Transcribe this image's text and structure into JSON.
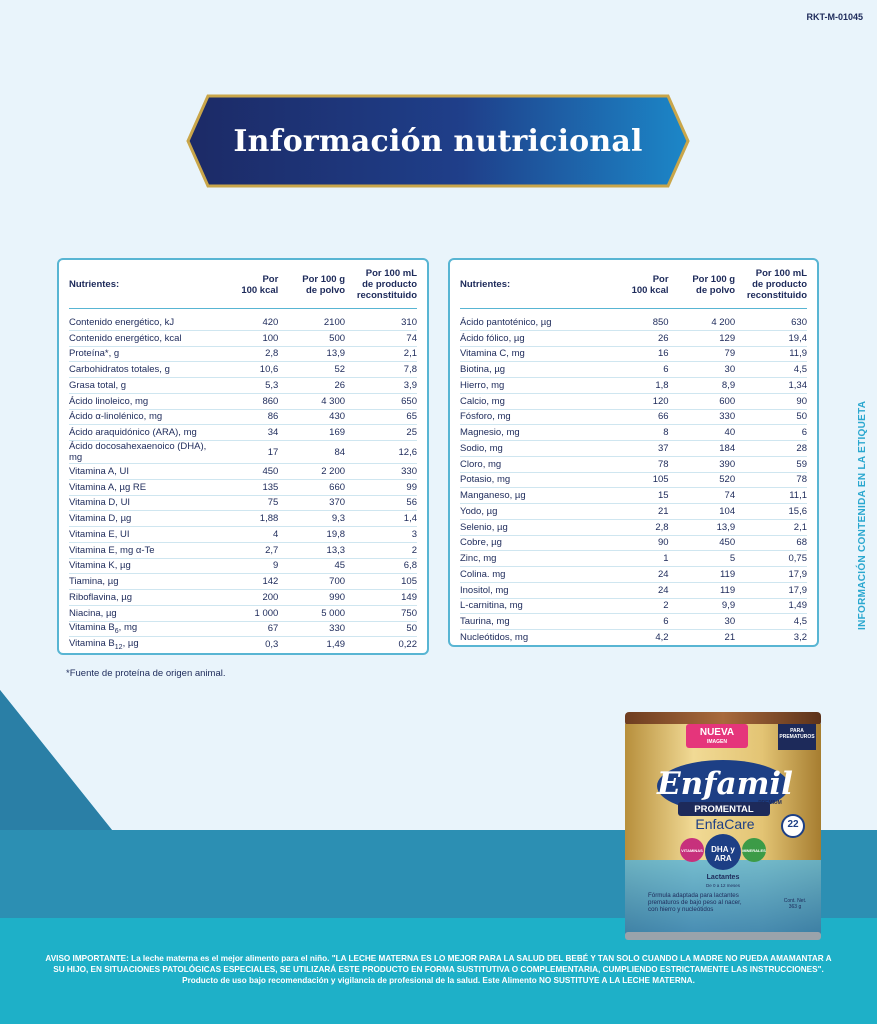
{
  "document_code": "RKT-M-01045",
  "title": "Información nutricional",
  "side_label": "INFORMACIÓN CONTENIDA EN LA ETIQUETA",
  "left_table": {
    "headers": [
      "Nutrientes:",
      "Por 100 kcal",
      "Por 100 g de polvo",
      "Por 100 mL de producto reconstituido"
    ],
    "rows": [
      [
        "Contenido energético, kJ",
        "420",
        "2100",
        "310"
      ],
      [
        "Contenido energético, kcal",
        "100",
        "500",
        "74"
      ],
      [
        "Proteína*, g",
        "2,8",
        "13,9",
        "2,1"
      ],
      [
        "Carbohidratos totales, g",
        "10,6",
        "52",
        "7,8"
      ],
      [
        "Grasa total, g",
        "5,3",
        "26",
        "3,9"
      ],
      [
        "Ácido linoleico, mg",
        "860",
        "4 300",
        "650"
      ],
      [
        "Ácido α-linolénico, mg",
        "86",
        "430",
        "65"
      ],
      [
        "Ácido araquidónico (ARA), mg",
        "34",
        "169",
        "25"
      ],
      [
        "Ácido docosahexaenoico (DHA), mg",
        "17",
        "84",
        "12,6"
      ],
      [
        "Vitamina A, UI",
        "450",
        "2 200",
        "330"
      ],
      [
        "Vitamina A, µg RE",
        "135",
        "660",
        "99"
      ],
      [
        "Vitamina D, UI",
        "75",
        "370",
        "56"
      ],
      [
        "Vitamina D, µg",
        "1,88",
        "9,3",
        "1,4"
      ],
      [
        "Vitamina E, UI",
        "4",
        "19,8",
        "3"
      ],
      [
        "Vitamina E, mg α-Te",
        "2,7",
        "13,3",
        "2"
      ],
      [
        "Vitamina K, µg",
        "9",
        "45",
        "6,8"
      ],
      [
        "Tiamina, µg",
        "142",
        "700",
        "105"
      ],
      [
        "Riboflavina, µg",
        "200",
        "990",
        "149"
      ],
      [
        "Niacina, µg",
        "1 000",
        "5 000",
        "750"
      ],
      [
        "Vitamina B6, mg",
        "67",
        "330",
        "50"
      ],
      [
        "Vitamina B12, µg",
        "0,3",
        "1,49",
        "0,22"
      ]
    ]
  },
  "right_table": {
    "headers": [
      "Nutrientes:",
      "Por 100 kcal",
      "Por 100 g de polvo",
      "Por 100 mL de producto reconstituido"
    ],
    "rows": [
      [
        "Ácido pantoténico, µg",
        "850",
        "4 200",
        "630"
      ],
      [
        "Ácido fólico, µg",
        "26",
        "129",
        "19,4"
      ],
      [
        "Vitamina C, mg",
        "16",
        "79",
        "11,9"
      ],
      [
        "Biotina, µg",
        "6",
        "30",
        "4,5"
      ],
      [
        "Hierro, mg",
        "1,8",
        "8,9",
        "1,34"
      ],
      [
        "Calcio, mg",
        "120",
        "600",
        "90"
      ],
      [
        "Fósforo, mg",
        "66",
        "330",
        "50"
      ],
      [
        "Magnesio, mg",
        "8",
        "40",
        "6"
      ],
      [
        "Sodio, mg",
        "37",
        "184",
        "28"
      ],
      [
        "Cloro, mg",
        "78",
        "390",
        "59"
      ],
      [
        "Potasio, mg",
        "105",
        "520",
        "78"
      ],
      [
        "Manganeso, µg",
        "15",
        "74",
        "11,1"
      ],
      [
        "Yodo, µg",
        "21",
        "104",
        "15,6"
      ],
      [
        "Selenio, µg",
        "2,8",
        "13,9",
        "2,1"
      ],
      [
        "Cobre, µg",
        "90",
        "450",
        "68"
      ],
      [
        "Zinc, mg",
        "1",
        "5",
        "0,75"
      ],
      [
        "Colina. mg",
        "24",
        "119",
        "17,9"
      ],
      [
        "Inositol, mg",
        "24",
        "119",
        "17,9"
      ],
      [
        "L-carnitina, mg",
        "2",
        "9,9",
        "1,49"
      ],
      [
        "Taurina, mg",
        "6",
        "30",
        "4,5"
      ],
      [
        "Nucleótidos, mg",
        "4,2",
        "21",
        "3,2"
      ]
    ]
  },
  "footnote": "*Fuente de proteína de origen animal.",
  "product": {
    "badge": "NUEVA",
    "badge_sub": "IMAGEN",
    "corner": "PARA PREMATUROS",
    "brand": "Enfamil",
    "tier": "PREMIUM",
    "line": "PROMENTAL",
    "sub": "EnfaCare",
    "pill1": "VITAMINAS",
    "pill2": "DHA y ARA",
    "pill3": "MINERALES",
    "nutrients_badge": "22",
    "stage": "Lactantes",
    "stage_sub": "De 0 a 12 meses",
    "desc": "Fórmula adaptada para lactantes prematuros de bajo peso al nacer, con hierro y nucleótidos",
    "net": "Cont. Net. 363 g"
  },
  "warning": "AVISO IMPORTANTE: La leche materna es el mejor alimento para el niño. \"LA LECHE MATERNA ES LO MEJOR PARA LA SALUD DEL BEBÉ Y TAN SOLO CUANDO LA MADRE NO PUEDA AMAMANTAR A SU HIJO, EN SITUACIONES PATOLÓGICAS ESPECIALES, SE UTILIZARÁ ESTE PRODUCTO EN FORMA SUSTITUTIVA O COMPLEMENTARIA, CUMPLIENDO ESTRICTAMENTE LAS INSTRUCCIONES\". Producto de uso bajo recomendación y vigilancia de profesional de la salud. Este Alimento NO SUSTITUYE A LA LECHE MATERNA.",
  "colors": {
    "navy": "#1d2a5a",
    "accent_blue": "#58b5d3",
    "teal": "#1eb0c8",
    "gold": "#c9a64a",
    "background": "#e9f4fb"
  }
}
